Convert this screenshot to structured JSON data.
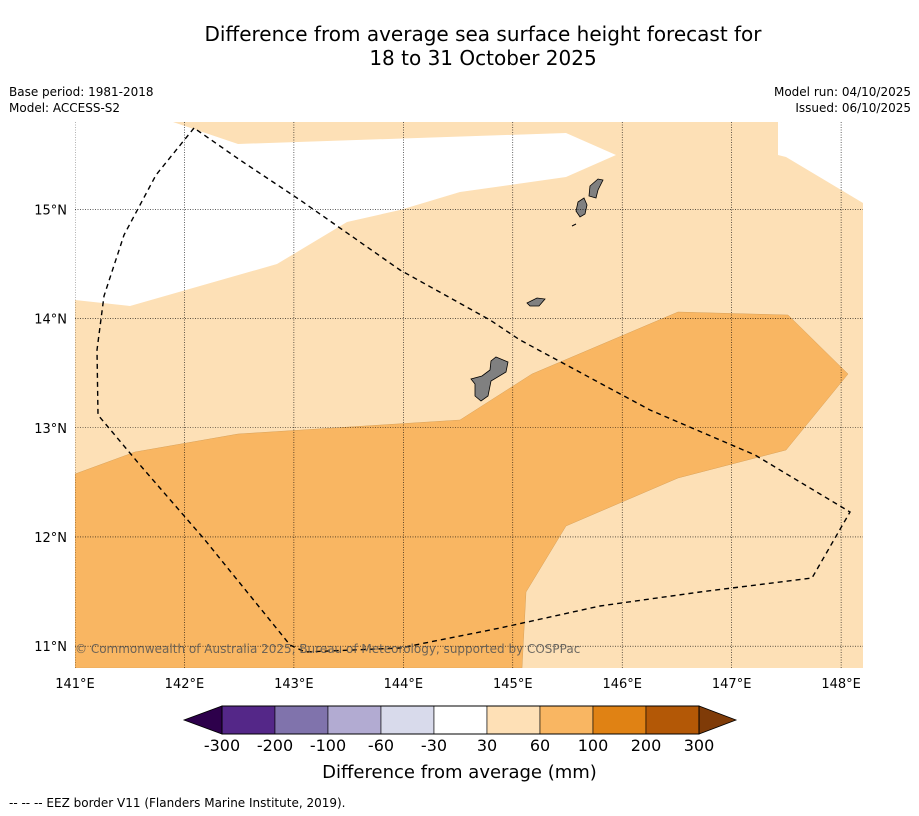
{
  "title": {
    "line1": "Difference from average sea surface height forecast for",
    "line2": "18 to 31 October 2025"
  },
  "meta": {
    "base_period": "Base period: 1981-2018",
    "model": "Model: ACCESS-S2",
    "model_run": "Model run: 04/10/2025",
    "issued": "Issued: 06/10/2025"
  },
  "map": {
    "lon_range": [
      141.0,
      148.2
    ],
    "lat_range": [
      10.8,
      15.8
    ],
    "lon_ticks": [
      "141°E",
      "142°E",
      "143°E",
      "144°E",
      "145°E",
      "146°E",
      "147°E",
      "148°E"
    ],
    "lat_ticks": [
      "11°N",
      "12°N",
      "13°N",
      "14°N",
      "15°N"
    ],
    "copyright": "© Commonwealth of Australia 2025, Bureau of Meteorology, supported by COSPPac",
    "colors": {
      "class_30_60": "#fde0b6",
      "class_60_100": "#f9b662",
      "land": "#808080",
      "border": "#000000"
    }
  },
  "colorbar": {
    "labels": [
      "-300",
      "-200",
      "-100",
      "-60",
      "-30",
      "30",
      "60",
      "100",
      "200",
      "300"
    ],
    "colors": [
      "#2d004b",
      "#542788",
      "#8073ac",
      "#b2abd2",
      "#d8daeb",
      "#ffffff",
      "#fee0b6",
      "#f9b662",
      "#e08214",
      "#b35806",
      "#7f3b08"
    ],
    "title": "Difference from average (mm)"
  },
  "footer": "--  --  -- EEZ border V11 (Flanders Marine Institute, 2019)."
}
